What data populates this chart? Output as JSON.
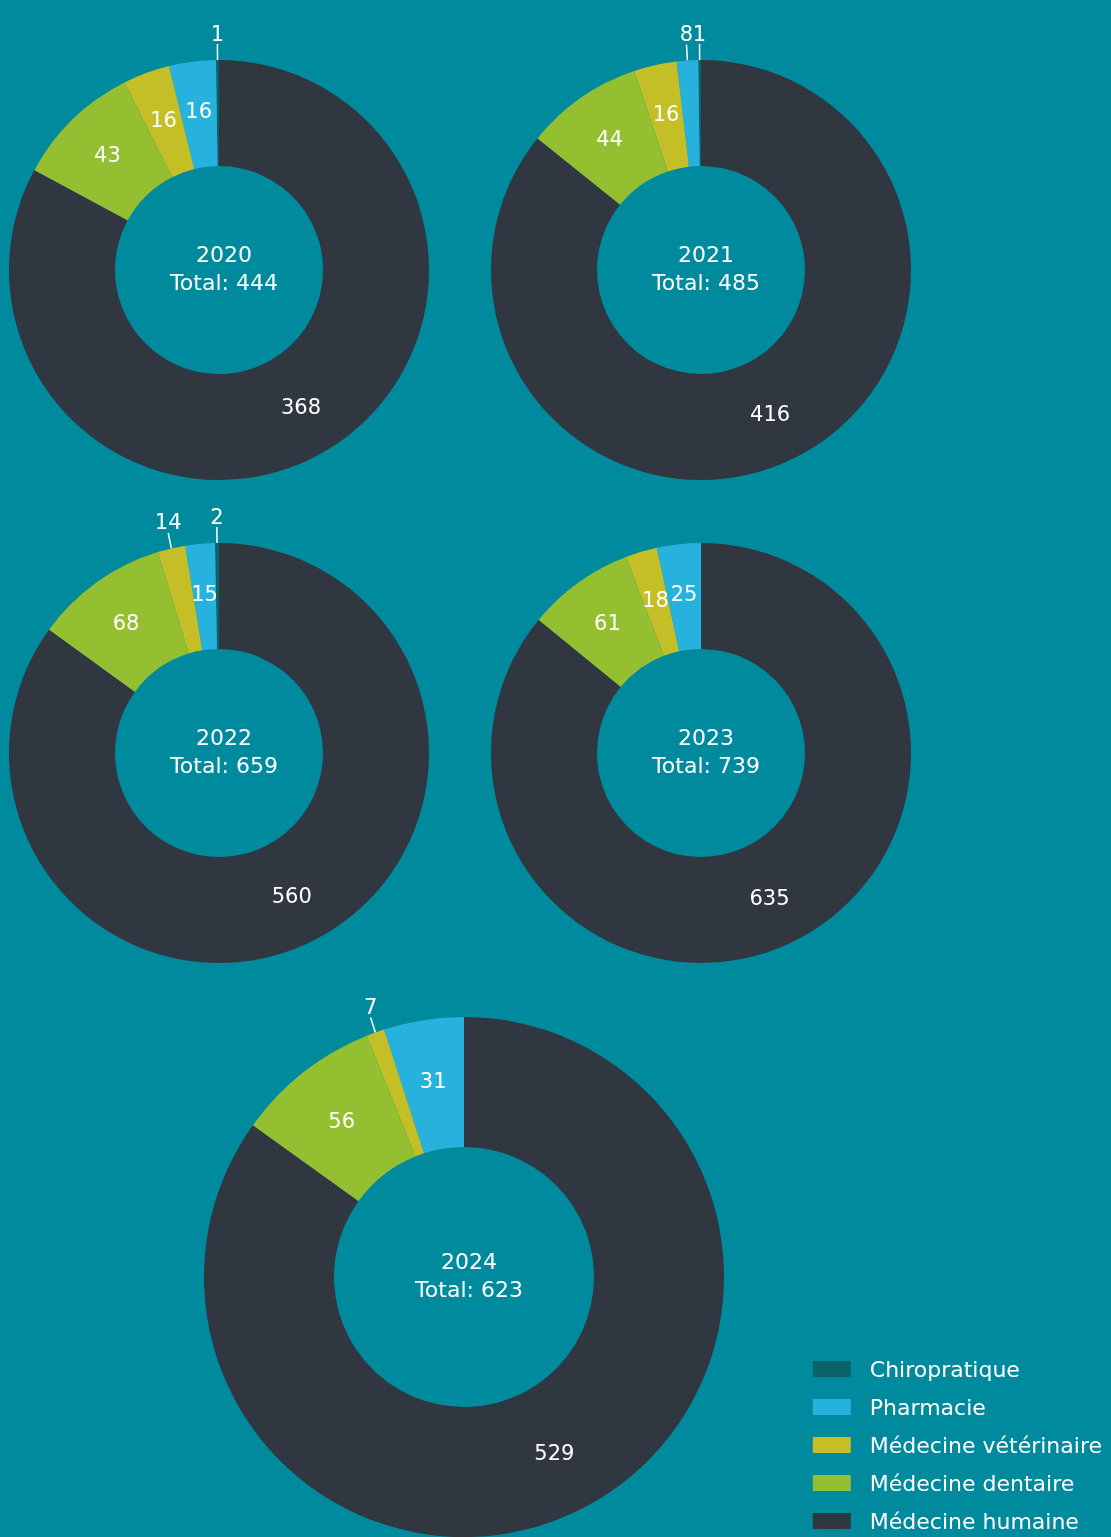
{
  "chart_data": [
    {
      "type": "donut",
      "title": "2020",
      "subtitle": "Total: 444",
      "categories": [
        null,
        null,
        null,
        null,
        null
      ],
      "values": [
        1,
        16,
        16,
        43,
        368
      ],
      "colors": [
        "#0b6369",
        "#27b1dd",
        "#c4bf26",
        "#94bf30",
        "#303740"
      ],
      "data_labels": true,
      "legend": false
    },
    {
      "type": "donut",
      "title": "2021",
      "subtitle": "Total: 485",
      "categories": [
        null,
        null,
        null,
        null,
        null
      ],
      "values": [
        1,
        8,
        16,
        44,
        416
      ],
      "colors": [
        "#0b6369",
        "#27b1dd",
        "#c4bf26",
        "#94bf30",
        "#303740"
      ],
      "data_labels": true,
      "legend": false
    },
    {
      "type": "donut",
      "title": "2022",
      "subtitle": "Total: 659",
      "categories": [
        null,
        null,
        null,
        null,
        null
      ],
      "values": [
        2,
        15,
        14,
        68,
        560
      ],
      "colors": [
        "#0b6369",
        "#27b1dd",
        "#c4bf26",
        "#94bf30",
        "#303740"
      ],
      "data_labels": true,
      "legend": false
    },
    {
      "type": "donut",
      "title": "2023",
      "subtitle": "Total: 739",
      "categories": [
        null,
        null,
        null,
        null,
        null
      ],
      "values": [
        null,
        25,
        18,
        61,
        635
      ],
      "colors": [
        "#0b6369",
        "#27b1dd",
        "#c4bf26",
        "#94bf30",
        "#303740"
      ],
      "data_labels": true,
      "legend": false
    },
    {
      "type": "donut",
      "title": "2024",
      "subtitle": "Total: 623",
      "categories": [
        "Chiropratique",
        "Pharmacie",
        "Médecine vétérinaire",
        "Médecine dentaire",
        "Médecine humaine"
      ],
      "values": [
        null,
        31,
        7,
        56,
        529
      ],
      "colors": [
        "#0b6369",
        "#27b1dd",
        "#c4bf26",
        "#94bf30",
        "#303740"
      ],
      "data_labels": true,
      "legend": "bottom right"
    }
  ]
}
